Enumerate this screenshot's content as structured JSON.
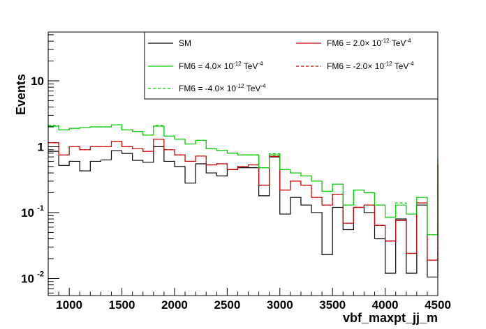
{
  "chart_data": {
    "type": "line",
    "step": true,
    "xlabel": "vbf_maxpt_jj_m",
    "ylabel": "Events",
    "xlim": [
      800,
      4500
    ],
    "ylim": [
      0.0055,
      55
    ],
    "yscale": "log",
    "bin_width": 100,
    "x_ticks": [
      1000,
      1500,
      2000,
      2500,
      3000,
      3500,
      4000,
      4500
    ],
    "x_tick_labels": [
      "1000",
      "1500",
      "2000",
      "2500",
      "3000",
      "3500",
      "4000",
      "4500"
    ],
    "y_ticks": [
      0.01,
      0.1,
      1,
      10
    ],
    "y_tick_labels": [
      {
        "base": "10",
        "exp": "-2"
      },
      {
        "base": "10",
        "exp": "-1"
      },
      {
        "base": "1",
        "exp": ""
      },
      {
        "base": "10",
        "exp": ""
      }
    ],
    "bin_edges": [
      800,
      900,
      1000,
      1100,
      1200,
      1300,
      1400,
      1500,
      1600,
      1700,
      1800,
      1900,
      2000,
      2100,
      2200,
      2300,
      2400,
      2500,
      2600,
      2700,
      2800,
      2900,
      3000,
      3100,
      3200,
      3300,
      3400,
      3500,
      3600,
      3700,
      3800,
      3900,
      4000,
      4100,
      4200,
      4300,
      4400,
      4500
    ],
    "series": [
      {
        "name": "SM",
        "color": "#000000",
        "dash": "solid",
        "values": [
          0.85,
          0.52,
          0.6,
          0.43,
          0.6,
          0.63,
          0.87,
          0.79,
          0.62,
          0.58,
          1.0,
          0.6,
          0.5,
          0.28,
          0.55,
          0.4,
          0.36,
          0.45,
          0.48,
          0.48,
          0.18,
          0.7,
          0.095,
          0.17,
          0.13,
          0.1,
          0.023,
          0.12,
          0.055,
          0.12,
          0.1,
          0.04,
          0.012,
          0.08,
          0.012,
          0.13,
          0.0105,
          0.5
        ]
      },
      {
        "name": "FM6 = 2.0× 10^-12 TeV^-4",
        "color": "#cc0000",
        "dash": "solid",
        "values": [
          1.15,
          0.75,
          1.0,
          0.9,
          1.0,
          1.0,
          1.2,
          1.0,
          0.93,
          0.85,
          1.3,
          0.9,
          0.75,
          0.6,
          0.72,
          0.53,
          0.55,
          0.45,
          0.5,
          0.53,
          0.26,
          0.71,
          0.22,
          0.3,
          0.26,
          0.17,
          0.13,
          0.19,
          0.069,
          0.12,
          0.13,
          0.064,
          0.037,
          0.076,
          0.024,
          0.14,
          0.019,
          0.55
        ]
      },
      {
        "name": "FM6 = 4.0× 10^-12 TeV^-4",
        "color": "#00cc00",
        "dash": "solid",
        "values": [
          2.05,
          1.8,
          1.9,
          1.95,
          2.0,
          2.0,
          2.15,
          1.8,
          1.7,
          1.5,
          2.05,
          1.45,
          1.3,
          1.1,
          1.25,
          0.93,
          0.88,
          0.8,
          0.75,
          0.75,
          0.48,
          0.75,
          0.45,
          0.4,
          0.36,
          0.3,
          0.21,
          0.27,
          0.13,
          0.22,
          0.2,
          0.13,
          0.085,
          0.13,
          0.095,
          0.17,
          0.046,
          0.68
        ]
      },
      {
        "name": "FM6 = -2.0× 10^-12 TeV^-4",
        "color": "#cc0000",
        "dash": "dashed",
        "values": [
          1.15,
          0.75,
          1.0,
          0.9,
          1.0,
          1.0,
          1.2,
          1.0,
          0.93,
          0.85,
          1.3,
          0.9,
          0.75,
          0.6,
          0.72,
          0.53,
          0.55,
          0.45,
          0.5,
          0.53,
          0.26,
          0.74,
          0.22,
          0.3,
          0.26,
          0.17,
          0.13,
          0.19,
          0.069,
          0.12,
          0.13,
          0.064,
          0.037,
          0.076,
          0.024,
          0.14,
          0.019,
          0.55
        ]
      },
      {
        "name": "FM6 = -4.0× 10^-12 TeV^-4",
        "color": "#00cc00",
        "dash": "dashed",
        "values": [
          2.1,
          1.8,
          1.9,
          1.95,
          2.0,
          2.0,
          2.15,
          1.8,
          1.7,
          1.5,
          2.1,
          1.45,
          1.3,
          1.1,
          1.25,
          0.93,
          0.88,
          0.8,
          0.75,
          0.75,
          0.48,
          0.78,
          0.45,
          0.4,
          0.36,
          0.3,
          0.21,
          0.27,
          0.13,
          0.22,
          0.2,
          0.13,
          0.085,
          0.14,
          0.095,
          0.17,
          0.046,
          0.7
        ]
      }
    ],
    "legend": {
      "placement": "top-right",
      "entries": [
        {
          "series": 0,
          "label": "SM",
          "pre": "SM",
          "exp1": "",
          "mid": "",
          "exp2": ""
        },
        {
          "series": 1,
          "label": "FM6 = 2.0× 10^-12 TeV^-4",
          "pre": "FM6 = 2.0× 10",
          "exp1": "-12",
          "mid": " TeV",
          "exp2": "-4"
        },
        {
          "series": 2,
          "label": "FM6 = 4.0× 10^-12 TeV^-4",
          "pre": "FM6 = 4.0× 10",
          "exp1": "-12",
          "mid": " TeV",
          "exp2": "-4"
        },
        {
          "series": 3,
          "label": "FM6 = -2.0× 10^-12 TeV^-4",
          "pre": "FM6 = -2.0× 10",
          "exp1": "-12",
          "mid": " TeV",
          "exp2": "-4"
        },
        {
          "series": 4,
          "label": "FM6 = -4.0× 10^-12 TeV^-4",
          "pre": "FM6 = -4.0× 10",
          "exp1": "-12",
          "mid": " TeV",
          "exp2": "-4"
        }
      ]
    }
  }
}
